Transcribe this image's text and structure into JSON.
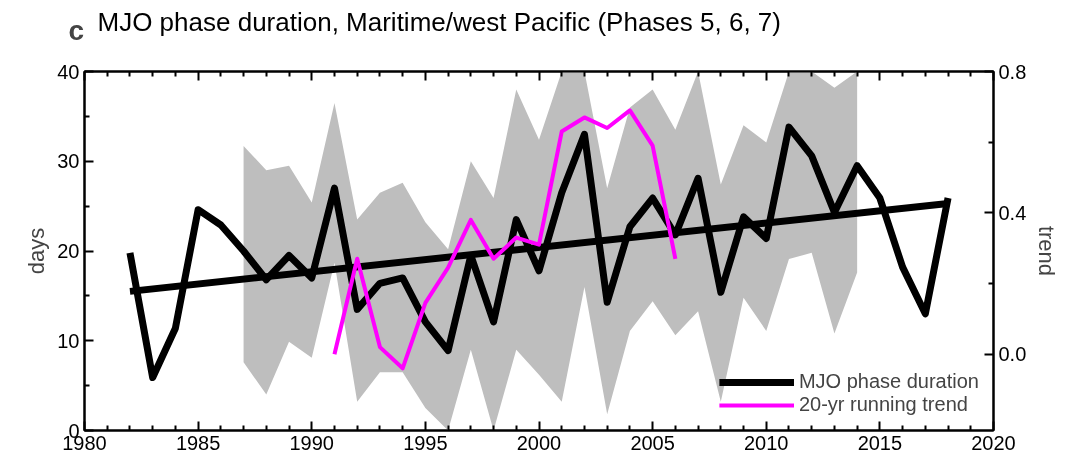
{
  "chart_data": {
    "type": "line",
    "title": "MJO phase duration, Maritime/west Pacific (Phases 5, 6, 7)",
    "annotations": [
      "c"
    ],
    "ylabel": "days",
    "y2label": "trend",
    "xlim": [
      1980,
      2020
    ],
    "xticks": [
      1980,
      {
        "value": 1981,
        "label": null
      },
      {
        "value": 1982,
        "label": null
      },
      {
        "value": 1983,
        "label": null
      },
      {
        "value": 1984,
        "label": null
      },
      1985,
      {
        "value": 1986,
        "label": null
      },
      {
        "value": 1987,
        "label": null
      },
      {
        "value": 1988,
        "label": null
      },
      {
        "value": 1989,
        "label": null
      },
      1990,
      {
        "value": 1991,
        "label": null
      },
      {
        "value": 1992,
        "label": null
      },
      {
        "value": 1993,
        "label": null
      },
      {
        "value": 1994,
        "label": null
      },
      1995,
      {
        "value": 1996,
        "label": null
      },
      {
        "value": 1997,
        "label": null
      },
      {
        "value": 1998,
        "label": null
      },
      {
        "value": 1999,
        "label": null
      },
      2000,
      {
        "value": 2001,
        "label": null
      },
      {
        "value": 2002,
        "label": null
      },
      {
        "value": 2003,
        "label": null
      },
      {
        "value": 2004,
        "label": null
      },
      2005,
      {
        "value": 2006,
        "label": null
      },
      {
        "value": 2007,
        "label": null
      },
      {
        "value": 2008,
        "label": null
      },
      {
        "value": 2009,
        "label": null
      },
      2010,
      {
        "value": 2011,
        "label": null
      },
      {
        "value": 2012,
        "label": null
      },
      {
        "value": 2013,
        "label": null
      },
      {
        "value": 2014,
        "label": null
      },
      2015,
      {
        "value": 2016,
        "label": null
      },
      {
        "value": 2017,
        "label": null
      },
      {
        "value": 2018,
        "label": null
      },
      {
        "value": 2019,
        "label": null
      },
      2020
    ],
    "ylim": [
      0,
      40
    ],
    "yticks": [
      0,
      {
        "value": 5,
        "label": null
      },
      10,
      {
        "value": 15,
        "label": null
      },
      20,
      {
        "value": 25,
        "label": null
      },
      30,
      {
        "value": 35,
        "label": null
      },
      40
    ],
    "y2lim": [
      -0.216,
      0.8
    ],
    "y2ticks": [
      {
        "value": 0.0,
        "label": "0.0"
      },
      {
        "value": 0.2,
        "label": null
      },
      {
        "value": 0.4,
        "label": "0.4"
      },
      {
        "value": 0.6,
        "label": null
      },
      {
        "value": 0.8,
        "label": "0.8"
      }
    ],
    "grid": false,
    "legend": "bottom right",
    "series": [
      {
        "name": "MJO phase duration",
        "color": "#000000",
        "lower": [
          null,
          null,
          null,
          null,
          null,
          7.6,
          4.0,
          9.9,
          8.1,
          18.7,
          3.2,
          6.5,
          6.5,
          2.5,
          0,
          9,
          0,
          9,
          6.2,
          3.2,
          16,
          1.8,
          11.1,
          14.4,
          10.6,
          13.3,
          3.2,
          14.8,
          11.1,
          19.1,
          19.8,
          10.8,
          17.6,
          null,
          null,
          null,
          null
        ],
        "upper": [
          null,
          null,
          null,
          null,
          null,
          31.7,
          29,
          29.5,
          25.4,
          36.5,
          23.5,
          26.5,
          27.6,
          23.2,
          20.2,
          30,
          25.9,
          38,
          32.4,
          40,
          40,
          27,
          36,
          38,
          33.5,
          40,
          27.4,
          34,
          32.1,
          40,
          40,
          38.2,
          40,
          null,
          null,
          null,
          null
        ],
        "x": [
          1982,
          1983,
          1984,
          1985,
          1986,
          1987,
          1988,
          1989,
          1990,
          1991,
          1992,
          1993,
          1994,
          1995,
          1996,
          1997,
          1998,
          1999,
          2000,
          2001,
          2002,
          2003,
          2004,
          2005,
          2006,
          2007,
          2008,
          2009,
          2010,
          2011,
          2012,
          2013,
          2014,
          2015,
          2016,
          2017,
          2018
        ],
        "values": [
          19.8,
          5.9,
          11.4,
          24.6,
          22.9,
          20,
          16.8,
          19.5,
          17,
          27,
          13.5,
          16.4,
          17,
          12.1,
          8.9,
          19.5,
          12.1,
          23.5,
          17.8,
          26.5,
          33,
          14.3,
          22.7,
          25.9,
          21.8,
          28.1,
          15.4,
          23.8,
          21.4,
          33.8,
          30.6,
          24.3,
          29.5,
          25.9,
          18.2,
          13,
          25.9
        ]
      },
      {
        "color": "#000000",
        "x": [
          1982,
          2018
        ],
        "values": [
          15.5,
          25.3
        ]
      },
      {
        "name": "20-yr running trend",
        "color": "#ff00ff",
        "axis": "y2",
        "x": [
          1991,
          1992,
          1993,
          1994,
          1995,
          1996,
          1997,
          1998,
          1999,
          2000,
          2001,
          2002,
          2003,
          2004,
          2005,
          2006
        ],
        "values": [
          0.0,
          0.27,
          0.02,
          -0.04,
          0.145,
          0.245,
          0.38,
          0.27,
          0.33,
          0.31,
          0.63,
          0.67,
          0.64,
          0.69,
          0.59,
          0.27
        ]
      }
    ]
  }
}
